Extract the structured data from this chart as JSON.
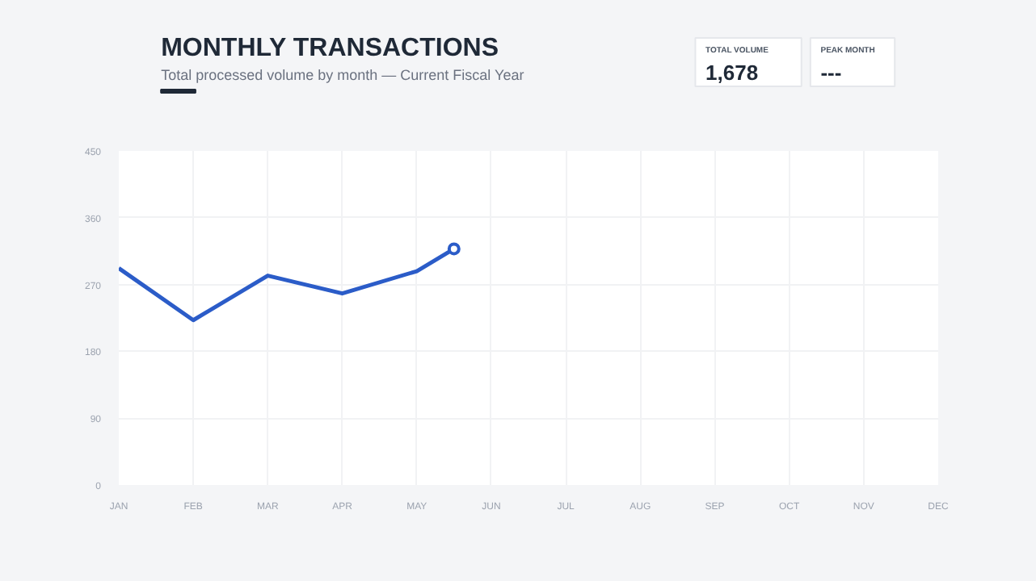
{
  "chart_data": [
    {
      "type": "line",
      "title": "MONTHLY TRANSACTIONS",
      "subtitle": "Total processed volume by month — Current Fiscal Year",
      "categories": [
        "JAN",
        null,
        "FEB",
        null,
        "MAR",
        null,
        "APR",
        null,
        "MAY",
        null,
        "JUN",
        null,
        "JUL",
        null,
        "AUG",
        null,
        "SEP",
        null,
        "OCT",
        null,
        "NOV",
        null,
        "DEC"
      ],
      "ylim": [
        0,
        450
      ],
      "yticks": [
        0,
        90,
        180,
        270,
        360,
        450
      ],
      "grid": true,
      "line_style": "solid",
      "series": [
        {
          "type": "line",
          "color": "#2b5cc8",
          "values": [
            292,
            null,
            222,
            null,
            282,
            null,
            258,
            null,
            288,
            318,
            null,
            null,
            null,
            null,
            null,
            null,
            null,
            null,
            null,
            null,
            null,
            null,
            null
          ]
        },
        {
          "type": "scatter",
          "color": "#2b5cc8",
          "marker": "circle",
          "values": [
            null,
            null,
            null,
            null,
            null,
            null,
            null,
            null,
            null,
            318,
            null,
            null,
            null,
            null,
            null,
            null,
            null,
            null,
            null,
            null,
            null,
            null,
            null
          ]
        }
      ]
    },
    {
      "type": "other",
      "title": "TOTAL VOLUME",
      "annotations": [
        "1,678"
      ]
    },
    {
      "type": "other",
      "title": "PEAK MONTH",
      "annotations": [
        "---"
      ]
    }
  ]
}
